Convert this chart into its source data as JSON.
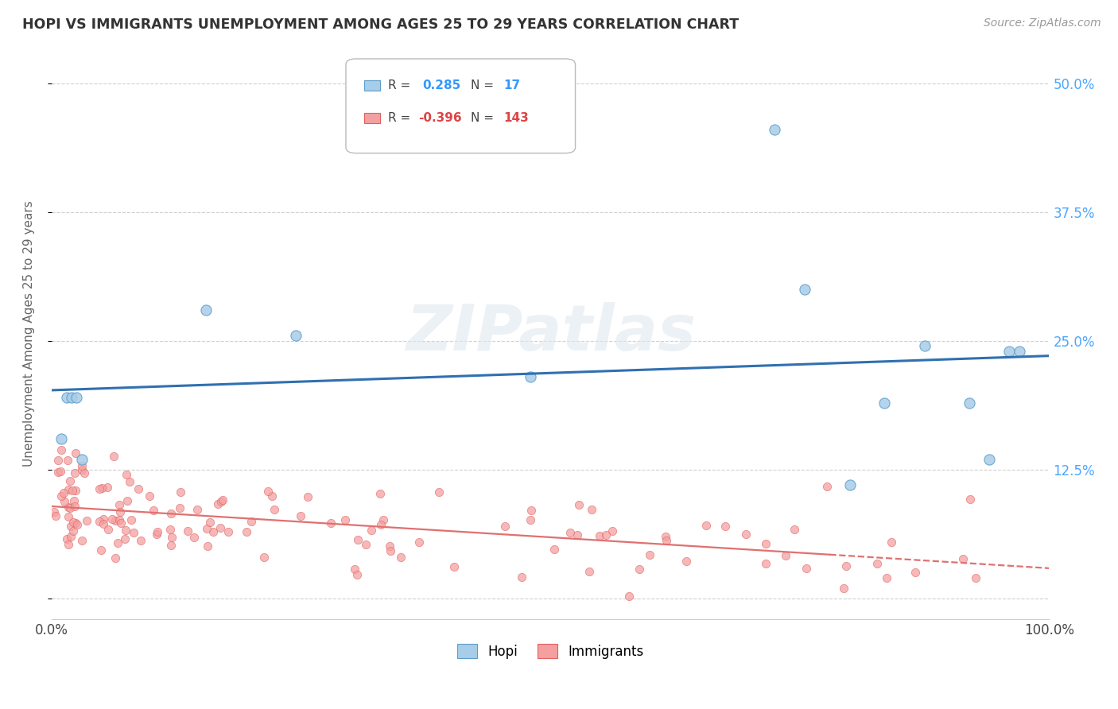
{
  "title": "HOPI VS IMMIGRANTS UNEMPLOYMENT AMONG AGES 25 TO 29 YEARS CORRELATION CHART",
  "source": "Source: ZipAtlas.com",
  "ylabel": "Unemployment Among Ages 25 to 29 years",
  "xlim": [
    0,
    1.0
  ],
  "ylim": [
    -0.02,
    0.535
  ],
  "legend_hopi_r": "0.285",
  "legend_hopi_n": "17",
  "legend_immigrants_r": "-0.396",
  "legend_immigrants_n": "143",
  "hopi_color": "#a8cde8",
  "immigrants_color": "#f4a0a0",
  "hopi_edge_color": "#5b9ec9",
  "immigrants_edge_color": "#e06060",
  "hopi_line_color": "#3070b0",
  "immigrants_line_color": "#e07070",
  "hopi_x": [
    0.01,
    0.015,
    0.02,
    0.025,
    0.03,
    0.155,
    0.245,
    0.48,
    0.725,
    0.755,
    0.8,
    0.835,
    0.875,
    0.92,
    0.94,
    0.96,
    0.97
  ],
  "hopi_y": [
    0.155,
    0.195,
    0.195,
    0.195,
    0.135,
    0.28,
    0.255,
    0.215,
    0.455,
    0.3,
    0.11,
    0.19,
    0.245,
    0.19,
    0.135,
    0.24,
    0.24
  ],
  "watermark_text": "ZIPatlas",
  "background_color": "#ffffff",
  "grid_color": "#d0d0d0",
  "ytick_color": "#4da6ff"
}
